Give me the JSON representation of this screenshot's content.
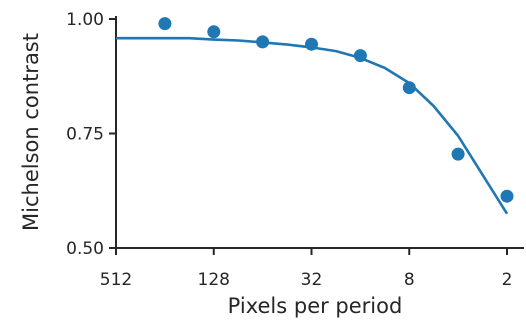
{
  "chart_data": {
    "type": "scatter",
    "title": "",
    "xlabel": "Pixels per period",
    "ylabel": "Michelson contrast",
    "x_scale": "log2-reversed",
    "xlim": [
      512,
      2
    ],
    "ylim": [
      0.5,
      1.0
    ],
    "x_ticks": [
      512,
      128,
      32,
      8,
      2
    ],
    "x_tick_labels": [
      "512",
      "128",
      "32",
      "8",
      "2"
    ],
    "y_ticks": [
      0.5,
      0.75,
      1.0
    ],
    "y_tick_labels": [
      "0.50",
      "0.75",
      "1.00"
    ],
    "grid": false,
    "color": "#1f77b4",
    "series": [
      {
        "kind": "points",
        "x": [
          256,
          128,
          64,
          32,
          16,
          8,
          4,
          2
        ],
        "y": [
          0.99,
          0.972,
          0.95,
          0.945,
          0.92,
          0.85,
          0.705,
          0.613
        ]
      },
      {
        "kind": "fit-line",
        "x": [
          512,
          181,
          128,
          90,
          64,
          45,
          32,
          22.6,
          16,
          11.3,
          8,
          5.66,
          4,
          2.83,
          2
        ],
        "y": [
          0.958,
          0.958,
          0.955,
          0.953,
          0.949,
          0.944,
          0.938,
          0.93,
          0.915,
          0.893,
          0.86,
          0.81,
          0.745,
          0.66,
          0.575
        ]
      }
    ]
  }
}
